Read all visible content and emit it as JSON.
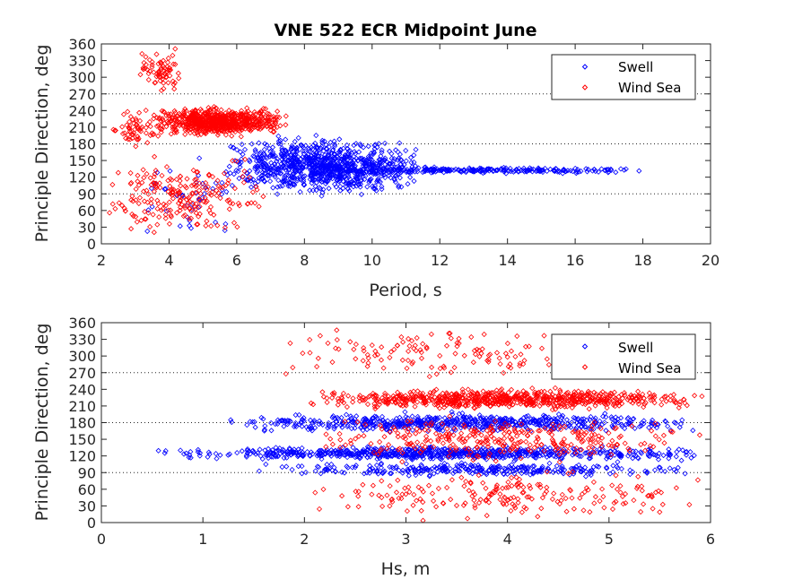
{
  "chart_data": [
    {
      "type": "scatter",
      "title": "VNE 522 ECR Midpoint June",
      "xlabel": "Period, s",
      "ylabel": "Principle Direction, deg",
      "xlim": [
        2,
        20
      ],
      "ylim": [
        0,
        360
      ],
      "xticks": [
        "2",
        "4",
        "6",
        "8",
        "10",
        "12",
        "14",
        "16",
        "18",
        "20"
      ],
      "yticks": [
        "0",
        "30",
        "60",
        "90",
        "120",
        "150",
        "180",
        "210",
        "240",
        "270",
        "300",
        "330",
        "360"
      ],
      "grid_lines_y": [
        90,
        180,
        270
      ],
      "legend": {
        "position": "top-right",
        "entries": [
          "Swell",
          "Wind Sea"
        ]
      },
      "series": [
        {
          "name": "Swell",
          "color": "#0000ff",
          "marker": "diamond",
          "clusters": [
            {
              "x_range": [
                5.5,
                11.5
              ],
              "y_range": [
                80,
                200
              ],
              "count": 900
            },
            {
              "x_range": [
                8,
                18
              ],
              "y_range": [
                125,
                140
              ],
              "count": 260
            },
            {
              "x_range": [
                3,
                6
              ],
              "y_range": [
                0,
                170
              ],
              "count": 40
            }
          ]
        },
        {
          "name": "Wind Sea",
          "color": "#ff0000",
          "marker": "diamond",
          "clusters": [
            {
              "x_range": [
                3.5,
                7.5
              ],
              "y_range": [
                190,
                250
              ],
              "count": 700
            },
            {
              "x_range": [
                3,
                4.5
              ],
              "y_range": [
                260,
                360
              ],
              "count": 70
            },
            {
              "x_range": [
                2,
                7
              ],
              "y_range": [
                0,
                170
              ],
              "count": 220
            },
            {
              "x_range": [
                2,
                4
              ],
              "y_range": [
                170,
                250
              ],
              "count": 60
            }
          ]
        }
      ]
    },
    {
      "type": "scatter",
      "title": "",
      "xlabel": "Hs, m",
      "ylabel": "Principle Direction, deg",
      "xlim": [
        0,
        6
      ],
      "ylim": [
        0,
        360
      ],
      "xticks": [
        "0",
        "1",
        "2",
        "3",
        "4",
        "5",
        "6"
      ],
      "yticks": [
        "0",
        "30",
        "60",
        "90",
        "120",
        "150",
        "180",
        "210",
        "240",
        "270",
        "300",
        "330",
        "360"
      ],
      "grid_lines_y": [
        90,
        180,
        270
      ],
      "legend": {
        "position": "top-right",
        "entries": [
          "Swell",
          "Wind Sea"
        ]
      },
      "series": [
        {
          "name": "Swell",
          "color": "#0000ff",
          "marker": "diamond",
          "clusters": [
            {
              "x_range": [
                0.5,
                6
              ],
              "y_range": [
                110,
                140
              ],
              "count": 700
            },
            {
              "x_range": [
                1.2,
                6
              ],
              "y_range": [
                160,
                200
              ],
              "count": 600
            },
            {
              "x_range": [
                1.5,
                6
              ],
              "y_range": [
                80,
                110
              ],
              "count": 300
            }
          ]
        },
        {
          "name": "Wind Sea",
          "color": "#ff0000",
          "marker": "diamond",
          "clusters": [
            {
              "x_range": [
                2,
                6
              ],
              "y_range": [
                200,
                245
              ],
              "count": 700
            },
            {
              "x_range": [
                1.6,
                4.8
              ],
              "y_range": [
                250,
                360
              ],
              "count": 120
            },
            {
              "x_range": [
                2,
                6
              ],
              "y_range": [
                0,
                100
              ],
              "count": 200
            },
            {
              "x_range": [
                2,
                6
              ],
              "y_range": [
                100,
                200
              ],
              "count": 300
            }
          ]
        }
      ]
    }
  ]
}
